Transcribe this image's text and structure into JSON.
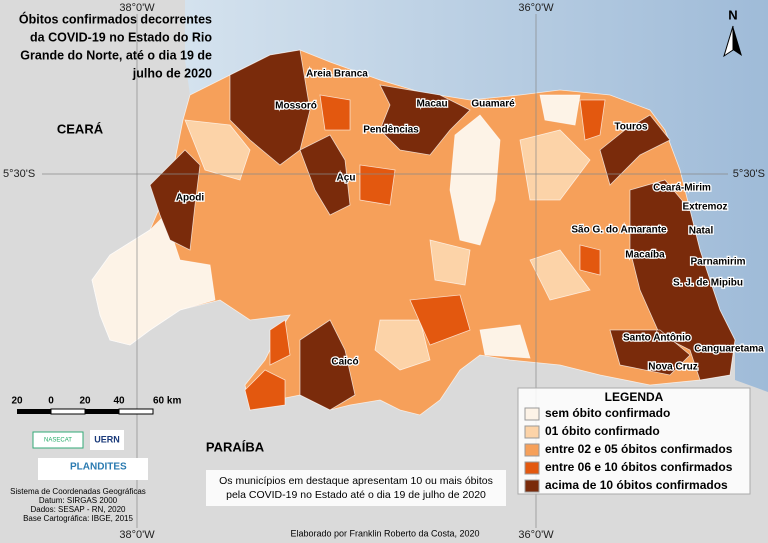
{
  "header": {
    "title_lines": [
      "Óbitos confirmados decorrentes",
      "da COVID-19 no Estado do Rio",
      "Grande do Norte, até o dia 19 de",
      "julho de 2020"
    ]
  },
  "graticule": {
    "lon_west": "38°0'W",
    "lon_east": "36°0'W",
    "lat": "5°30'S"
  },
  "north": "N",
  "states": {
    "ceara": "CEARÁ",
    "paraiba": "PARAÍBA"
  },
  "cities": [
    "Areia Branca",
    "Mossoró",
    "Macau",
    "Guamaré",
    "Pendências",
    "Touros",
    "Açu",
    "Apodi",
    "Ceará-Mirim",
    "Extremoz",
    "Natal",
    "São G. do Amarante",
    "Macaíba",
    "Parnamirim",
    "S. J. de Mipibu",
    "Santo Antônio",
    "Canguaretama",
    "Nova Cruz",
    "Caicó"
  ],
  "scale": {
    "ticks": [
      "20",
      "0",
      "20",
      "40",
      "60 km"
    ]
  },
  "logos": [
    "NASECAT",
    "UERN",
    "PLANDITES"
  ],
  "legend": {
    "title": "LEGENDA",
    "items": [
      {
        "label": "sem óbito confirmado",
        "color": "#fdf3e7"
      },
      {
        "label": "01 óbito confirmado",
        "color": "#fcd3a8"
      },
      {
        "label": "entre 02 e 05 óbitos confirmados",
        "color": "#f6a05a"
      },
      {
        "label": "entre 06 e 10 óbitos confirmados",
        "color": "#e3580f"
      },
      {
        "label": "acima de 10 óbitos confirmados",
        "color": "#7a2b0b"
      }
    ]
  },
  "note": [
    "Os municípios em destaque apresentam 10 ou mais óbitos",
    "pela COVID-19 no Estado até o dia 19 de julho de 2020"
  ],
  "credits": [
    "Sistema de Coordenadas Geográficas",
    "Datum: SIRGAS 2000",
    "Dados: SESAP - RN, 2020",
    "Base Cartográfica: IBGE, 2015"
  ],
  "author": "Elaborado por Franklin Roberto da Costa, 2020"
}
